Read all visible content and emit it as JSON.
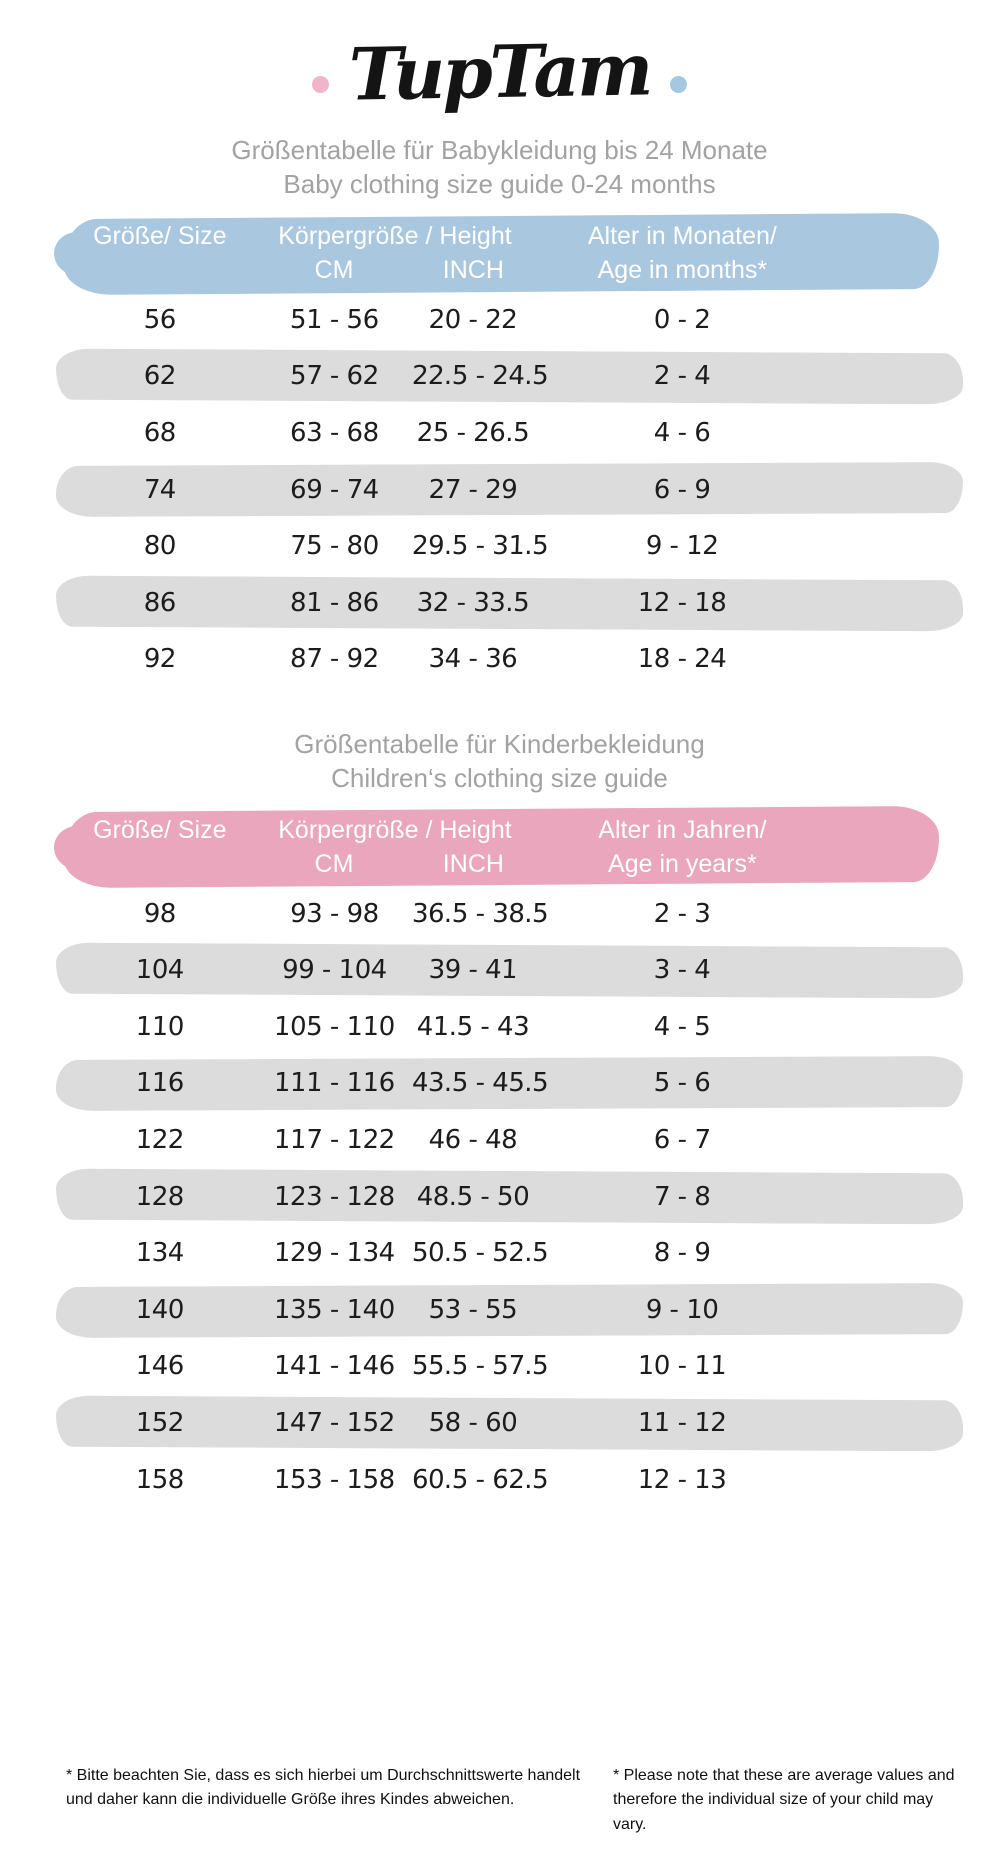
{
  "logo": {
    "text": "TupTam",
    "dot_left_color": "#f0b5c7",
    "dot_right_color": "#a5c8e1"
  },
  "baby_table": {
    "title_de": "Größentabelle für Babykleidung bis 24 Monate",
    "title_en": "Baby clothing size guide 0-24 months",
    "columns": {
      "size": "Größe/ Size",
      "height": "Körpergröße / Height",
      "cm": "CM",
      "inch": "INCH",
      "age_line1": "Alter in Monaten/",
      "age_line2": "Age in months*"
    },
    "rows": [
      {
        "size": "56",
        "cm": "51 - 56",
        "inch": "20 - 22",
        "age": "0 - 2"
      },
      {
        "size": "62",
        "cm": "57 - 62",
        "inch": "22.5 - 24.5",
        "age": "2 - 4"
      },
      {
        "size": "68",
        "cm": "63 - 68",
        "inch": "25 - 26.5",
        "age": "4 - 6"
      },
      {
        "size": "74",
        "cm": "69 - 74",
        "inch": "27 - 29",
        "age": "6 - 9"
      },
      {
        "size": "80",
        "cm": "75 - 80",
        "inch": "29.5 - 31.5",
        "age": "9 - 12"
      },
      {
        "size": "86",
        "cm": "81 - 86",
        "inch": "32 - 33.5",
        "age": "12 - 18"
      },
      {
        "size": "92",
        "cm": "87 - 92",
        "inch": "34 - 36",
        "age": "18 - 24"
      }
    ]
  },
  "children_table": {
    "title_de": "Größentabelle für Kinderbekleidung",
    "title_en": "Children‘s clothing size guide",
    "columns": {
      "size": "Größe/ Size",
      "height": "Körpergröße / Height",
      "cm": "CM",
      "inch": "INCH",
      "age_line1": "Alter in Jahren/",
      "age_line2": "Age in years*"
    },
    "rows": [
      {
        "size": "98",
        "cm": "93 - 98",
        "inch": "36.5 - 38.5",
        "age": "2 - 3"
      },
      {
        "size": "104",
        "cm": "99 - 104",
        "inch": "39 - 41",
        "age": "3 - 4"
      },
      {
        "size": "110",
        "cm": "105 - 110",
        "inch": "41.5 - 43",
        "age": "4 - 5"
      },
      {
        "size": "116",
        "cm": "111 - 116",
        "inch": "43.5 - 45.5",
        "age": "5 - 6"
      },
      {
        "size": "122",
        "cm": "117 - 122",
        "inch": "46 - 48",
        "age": "6 - 7"
      },
      {
        "size": "128",
        "cm": "123 - 128",
        "inch": "48.5 - 50",
        "age": "7 - 8"
      },
      {
        "size": "134",
        "cm": "129 - 134",
        "inch": "50.5 - 52.5",
        "age": "8 - 9"
      },
      {
        "size": "140",
        "cm": "135 - 140",
        "inch": "53 - 55",
        "age": "9 - 10"
      },
      {
        "size": "146",
        "cm": "141 - 146",
        "inch": "55.5 - 57.5",
        "age": "10 - 11"
      },
      {
        "size": "152",
        "cm": "147 - 152",
        "inch": "58 - 60",
        "age": "11 - 12"
      },
      {
        "size": "158",
        "cm": "153 - 158",
        "inch": "60.5 - 62.5",
        "age": "12 - 13"
      }
    ]
  },
  "footnotes": {
    "de": "* Bitte beachten Sie, dass es sich hierbei um Durchschnittswerte handelt und daher kann die individuelle Größe ihres Kindes abweichen.",
    "en": "* Please note that these are average values and therefore the individual size of your child may vary."
  },
  "colors": {
    "header_blue": "#a9c8df",
    "header_pink": "#eaa6bc",
    "stripe_gray": "#dcdcdc",
    "title_gray": "#a2a2a2"
  }
}
